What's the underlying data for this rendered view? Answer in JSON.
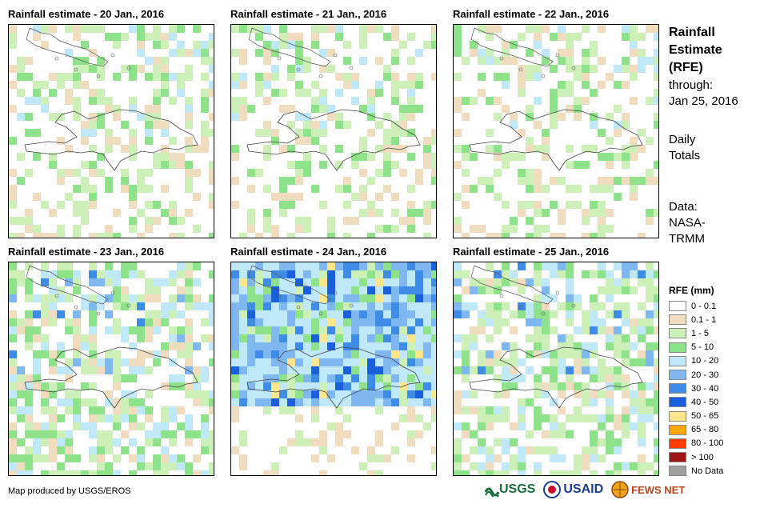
{
  "panels": [
    {
      "title": "Rainfall estimate - 20 Jan., 2016",
      "seed": 11,
      "rain": "light"
    },
    {
      "title": "Rainfall estimate - 21 Jan., 2016",
      "seed": 23,
      "rain": "light"
    },
    {
      "title": "Rainfall estimate - 22 Jan., 2016",
      "seed": 37,
      "rain": "light"
    },
    {
      "title": "Rainfall estimate - 23 Jan., 2016",
      "seed": 41,
      "rain": "moderate"
    },
    {
      "title": "Rainfall estimate - 24 Jan., 2016",
      "seed": 53,
      "rain": "heavy"
    },
    {
      "title": "Rainfall estimate - 25 Jan., 2016",
      "seed": 67,
      "rain": "moderate"
    }
  ],
  "side": {
    "title_line1": "Rainfall",
    "title_line2": "Estimate",
    "title_line3": "(RFE)",
    "through_label": "through:",
    "through_date": "Jan 25, 2016",
    "daily_line1": "Daily",
    "daily_line2": "Totals",
    "data_line1": "Data:",
    "data_line2": "NASA-",
    "data_line3": "TRMM"
  },
  "legend": {
    "title": "RFE (mm)",
    "items": [
      {
        "label": "0 - 0.1",
        "color": "#ffffff"
      },
      {
        "label": "0.1 - 1",
        "color": "#f0dcbf"
      },
      {
        "label": "1 - 5",
        "color": "#ccf0b8"
      },
      {
        "label": "5 - 10",
        "color": "#8ee28a"
      },
      {
        "label": "10 - 20",
        "color": "#bfe8f8"
      },
      {
        "label": "20 - 30",
        "color": "#7fb8f0"
      },
      {
        "label": "30 - 40",
        "color": "#3f8ce6"
      },
      {
        "label": "40 - 50",
        "color": "#1a5fdc"
      },
      {
        "label": "50 - 65",
        "color": "#ffe68c"
      },
      {
        "label": "65 - 80",
        "color": "#ffa500"
      },
      {
        "label": "80 - 100",
        "color": "#ff3c00"
      },
      {
        "label": "> 100",
        "color": "#a01414"
      },
      {
        "label": "No Data",
        "color": "#a0a0a0"
      }
    ]
  },
  "footer": {
    "credit": "Map produced by USGS/EROS"
  },
  "logos": {
    "usgs": "USGS",
    "usaid": "USAID",
    "fewsnet": "FEWS NET"
  }
}
